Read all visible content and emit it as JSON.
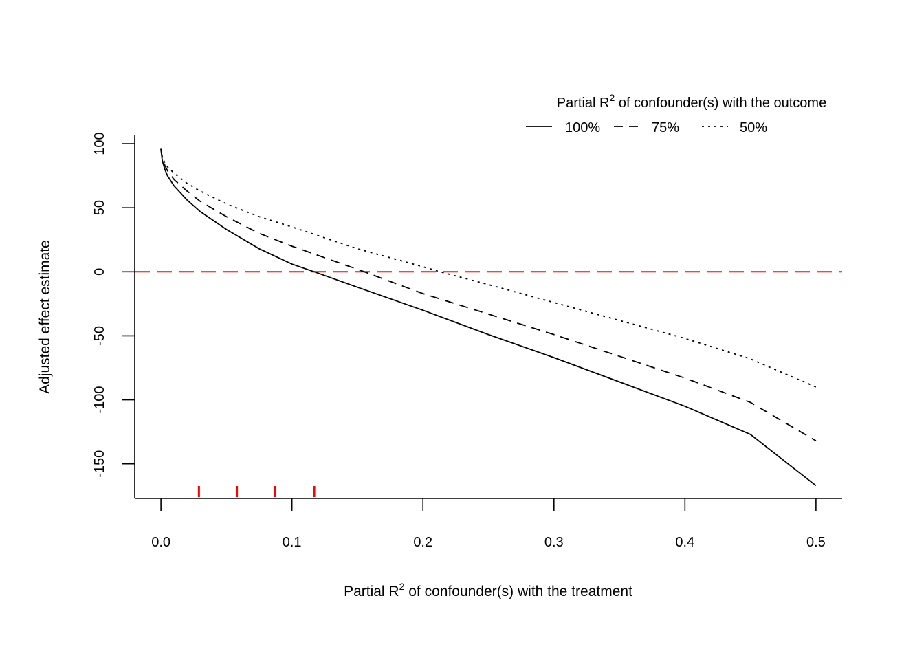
{
  "chart_data": {
    "type": "line",
    "xlabel_main": "Partial R",
    "xlabel_sup": "2",
    "xlabel_rest": " of confounder(s) with the treatment",
    "ylabel": "Adjusted effect estimate",
    "xlim": [
      -0.02,
      0.52
    ],
    "ylim": [
      -177,
      107
    ],
    "x_ticks": [
      0.0,
      0.1,
      0.2,
      0.3,
      0.4,
      0.5
    ],
    "x_tick_labels": [
      "0.0",
      "0.1",
      "0.2",
      "0.3",
      "0.4",
      "0.5"
    ],
    "y_ticks": [
      100,
      50,
      0,
      -50,
      -100,
      -150
    ],
    "y_tick_labels": [
      "100",
      "50",
      "0",
      "-50",
      "-100",
      "-150"
    ],
    "legend": {
      "title_main": "Partial R",
      "title_sup": "2",
      "title_rest": " of confounder(s) with the outcome",
      "placement": "top-right"
    },
    "reference_line": {
      "y": 0,
      "color": "#ff0000",
      "style": "dashed"
    },
    "rug_ticks": {
      "x": [
        0.029,
        0.058,
        0.087,
        0.117
      ],
      "color": "#ff0000"
    },
    "series": [
      {
        "name": "100%",
        "style": "solid",
        "x": [
          0.0,
          0.001,
          0.003,
          0.005,
          0.01,
          0.02,
          0.03,
          0.05,
          0.075,
          0.1,
          0.117,
          0.15,
          0.2,
          0.25,
          0.3,
          0.35,
          0.4,
          0.45,
          0.5
        ],
        "y": [
          96,
          87,
          80,
          75,
          67,
          56,
          47,
          33,
          18,
          6,
          0,
          -12,
          -30,
          -49,
          -67,
          -86,
          -105,
          -127,
          -167
        ]
      },
      {
        "name": "75%",
        "style": "dashed",
        "x": [
          0.0,
          0.001,
          0.003,
          0.005,
          0.01,
          0.02,
          0.03,
          0.05,
          0.075,
          0.1,
          0.15,
          0.2,
          0.25,
          0.3,
          0.35,
          0.4,
          0.45,
          0.5
        ],
        "y": [
          96,
          89,
          83,
          79,
          72,
          63,
          55,
          43,
          30,
          20,
          2,
          -17,
          -33,
          -49,
          -66,
          -83,
          -102,
          -132
        ]
      },
      {
        "name": "50%",
        "style": "dotted",
        "x": [
          0.0,
          0.001,
          0.003,
          0.005,
          0.01,
          0.02,
          0.03,
          0.05,
          0.075,
          0.1,
          0.15,
          0.2,
          0.213,
          0.25,
          0.3,
          0.35,
          0.4,
          0.45,
          0.5
        ],
        "y": [
          96,
          90,
          85,
          82,
          77,
          69,
          63,
          53,
          43,
          35,
          18,
          4,
          0,
          -10,
          -24,
          -38,
          -52,
          -68,
          -90
        ]
      }
    ]
  }
}
